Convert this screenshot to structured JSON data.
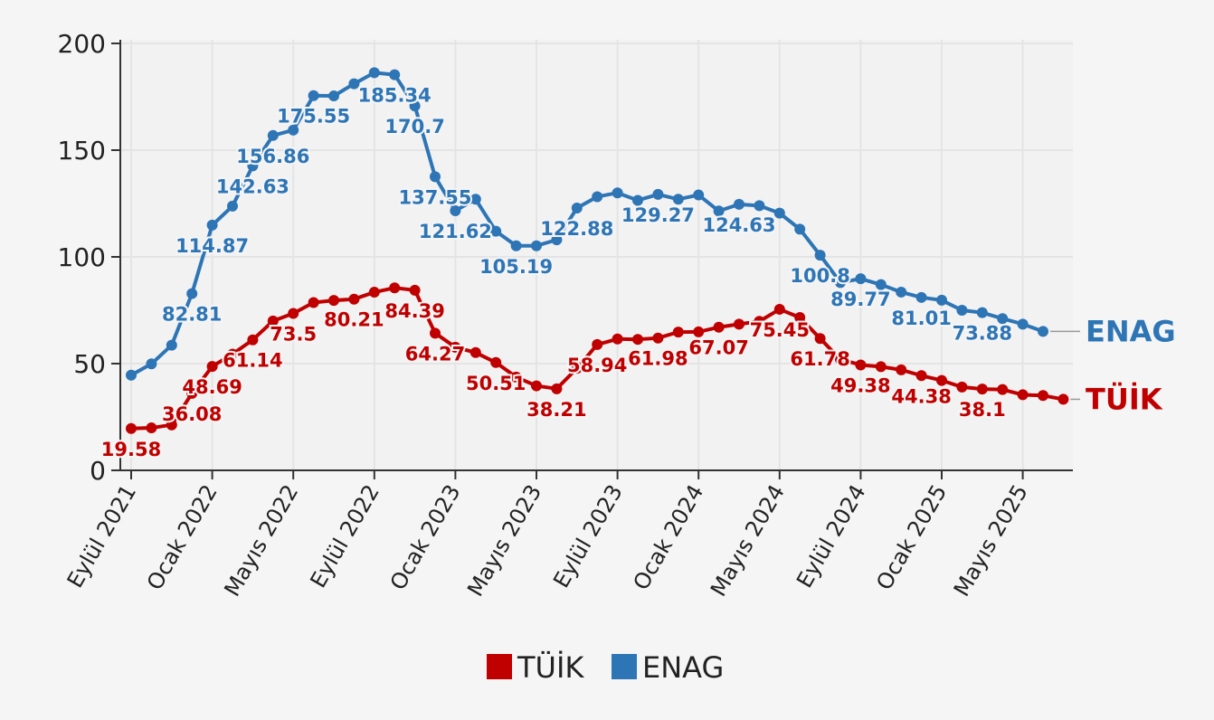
{
  "chart_data": {
    "type": "line",
    "title": "",
    "xlabel": "",
    "ylabel": "",
    "ylim": [
      0,
      200
    ],
    "yticks": [
      0,
      50,
      100,
      150,
      200
    ],
    "grid": true,
    "legend_position": "bottom-center",
    "x_tick_labels": [
      "Eylül 2021",
      "Ocak 2022",
      "Mayıs 2022",
      "Eylül 2022",
      "Ocak 2023",
      "Mayıs 2023",
      "Eylül 2023",
      "Ocak 2024",
      "Mayıs 2024",
      "Eylül 2024",
      "Ocak 2025",
      "Mayıs 2025"
    ],
    "x_tick_indices": [
      0,
      4,
      8,
      12,
      16,
      20,
      24,
      28,
      32,
      36,
      40,
      44
    ],
    "series": [
      {
        "name": "TÜİK",
        "color": "#c00000",
        "end_label": "TÜİK",
        "values": [
          19.58,
          19.89,
          21.31,
          36.08,
          48.69,
          54.44,
          61.14,
          69.97,
          73.5,
          78.62,
          79.6,
          80.21,
          83.45,
          85.51,
          84.39,
          64.27,
          57.68,
          55.18,
          50.51,
          43.68,
          39.59,
          38.21,
          47.83,
          58.94,
          61.53,
          61.36,
          61.98,
          64.77,
          64.86,
          67.07,
          68.5,
          69.8,
          75.45,
          71.6,
          61.78,
          51.97,
          49.38,
          48.58,
          47.09,
          44.38,
          42.12,
          39.05,
          38.1,
          37.86,
          35.41,
          35.05,
          33.29
        ],
        "labeled": {
          "0": "19.58",
          "3": "36.08",
          "4": "48.69",
          "6": "61.14",
          "8": "73.5",
          "11": "80.21",
          "14": "84.39",
          "15": "64.27",
          "18": "50.51",
          "21": "38.21",
          "23": "58.94",
          "26": "61.98",
          "29": "67.07",
          "32": "75.45",
          "34": "61.78",
          "36": "49.38",
          "39": "44.38",
          "42": "38.1"
        }
      },
      {
        "name": "ENAG",
        "color": "#2e75b6",
        "end_label": "ENAG",
        "values": [
          44.62,
          49.87,
          58.65,
          82.81,
          114.87,
          123.8,
          142.63,
          156.86,
          159.4,
          175.55,
          175.4,
          181.1,
          186.27,
          185.34,
          170.7,
          137.55,
          121.62,
          127.0,
          112.0,
          105.19,
          105.2,
          108.0,
          122.88,
          128.2,
          130.0,
          126.5,
          129.27,
          127.0,
          129.0,
          121.5,
          124.63,
          124.0,
          120.5,
          113.0,
          100.8,
          88.0,
          89.77,
          87.0,
          83.5,
          81.01,
          79.7,
          75.0,
          73.88,
          71.1,
          68.5,
          65.1
        ],
        "labeled": {
          "3": "82.81",
          "4": "114.87",
          "6": "142.63",
          "7": "156.86",
          "9": "175.55",
          "13": "185.34",
          "14": "170.7",
          "15": "137.55",
          "16": "121.62",
          "19": "105.19",
          "22": "122.88",
          "26": "129.27",
          "30": "124.63",
          "34": "100.8",
          "36": "89.77",
          "39": "81.01",
          "42": "73.88"
        }
      }
    ]
  },
  "legend": {
    "items": [
      {
        "label": "TÜİK",
        "color": "#c00000"
      },
      {
        "label": "ENAG",
        "color": "#2e75b6"
      }
    ]
  }
}
